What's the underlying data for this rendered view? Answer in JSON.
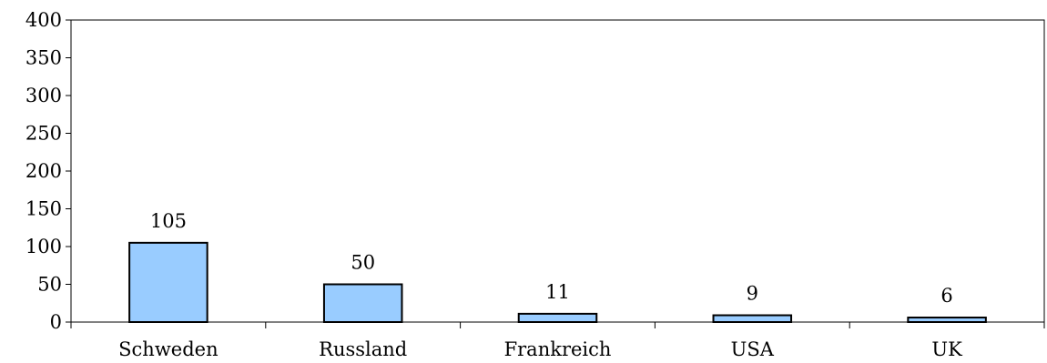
{
  "chart_data": {
    "type": "bar",
    "categories": [
      "Schweden",
      "Russland",
      "Frankreich",
      "USA",
      "UK"
    ],
    "values": [
      105,
      50,
      11,
      9,
      6
    ],
    "data_labels": [
      "105",
      "50",
      "11",
      "9",
      "6"
    ],
    "title": "",
    "xlabel": "",
    "ylabel": "",
    "ylim": [
      0,
      400
    ],
    "y_ticks": [
      0,
      50,
      100,
      150,
      200,
      250,
      300,
      350,
      400
    ],
    "grid": false,
    "legend": "none",
    "colors": {
      "bar_fill": "#99ccff",
      "bar_stroke": "#000000",
      "axis": "#000000"
    }
  }
}
